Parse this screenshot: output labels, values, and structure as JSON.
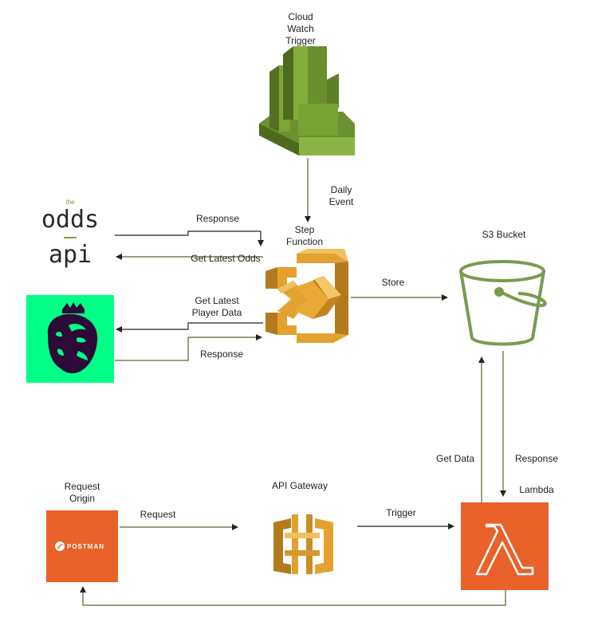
{
  "colors": {
    "cloudwatch": "#7aa035",
    "stepfunction": "#e3a22f",
    "s3_stroke": "#7a9c4e",
    "lambda": "#e8622a",
    "postman": "#e8622a",
    "premier_league": "#00ff85",
    "apigateway": "#d9a233",
    "arrow_dark": "#333333",
    "arrow_green": "#4d6a2a"
  },
  "nodes": {
    "cloudwatch": {
      "label": "Cloud Watch Trigger",
      "lines": [
        "Cloud",
        "Watch",
        "Trigger"
      ],
      "icon": "cloudwatch-icon"
    },
    "step_function": {
      "label": "Step Function",
      "lines": [
        "Step",
        "Function"
      ],
      "icon": "step-functions-icon"
    },
    "odds_api": {
      "logo_small": "the",
      "logo_line1": "odds",
      "logo_line2": "api",
      "icon": "odds-api-logo"
    },
    "premier_league": {
      "icon": "premier-league-lion-icon"
    },
    "s3": {
      "label": "S3 Bucket",
      "icon": "s3-bucket-icon"
    },
    "lambda": {
      "label": "Lambda",
      "icon": "lambda-icon"
    },
    "api_gateway": {
      "label": "API Gateway",
      "icon": "api-gateway-icon"
    },
    "request_origin": {
      "label": "Request Origin",
      "lines": [
        "Request",
        "Origin"
      ],
      "logo_text": "POSTMAN",
      "icon": "postman-icon"
    }
  },
  "edges": {
    "daily_event": {
      "lines": [
        "Daily",
        "Event"
      ]
    },
    "odds_response": {
      "label": "Response"
    },
    "get_latest_odds": {
      "label": "Get Latest Odds"
    },
    "get_latest_player": {
      "lines": [
        "Get Latest",
        "Player Data"
      ]
    },
    "player_response": {
      "label": "Response"
    },
    "store": {
      "label": "Store"
    },
    "get_data": {
      "label": "Get Data"
    },
    "s3_response": {
      "label": "Response"
    },
    "request": {
      "label": "Request"
    },
    "trigger": {
      "label": "Trigger"
    }
  }
}
